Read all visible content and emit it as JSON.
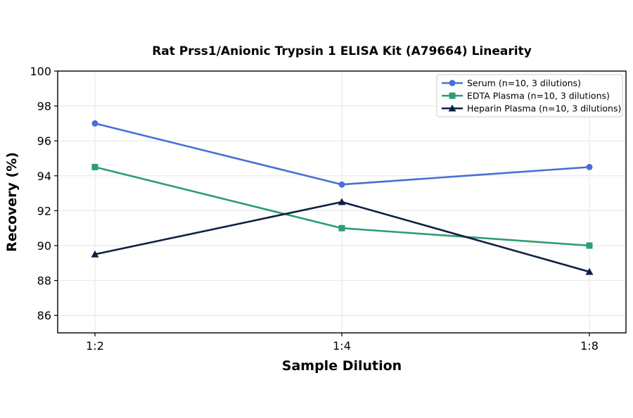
{
  "chart_data": {
    "type": "line",
    "title": "Rat Prss1/Anionic Trypsin 1 ELISA Kit (A79664) Linearity",
    "xlabel": "Sample Dilution",
    "ylabel": "Recovery (%)",
    "categories": [
      "1:2",
      "1:4",
      "1:8"
    ],
    "ylim": [
      85,
      100
    ],
    "yticks": [
      86,
      88,
      90,
      92,
      94,
      96,
      98,
      100
    ],
    "grid": true,
    "legend_position": "top-right",
    "series": [
      {
        "name": "Serum (n=10, 3 dilutions)",
        "values": [
          97.0,
          93.5,
          94.5
        ],
        "color": "#4a6fd4",
        "marker": "circle"
      },
      {
        "name": "EDTA Plasma (n=10, 3 dilutions)",
        "values": [
          94.5,
          91.0,
          90.0
        ],
        "color": "#2a9d74",
        "marker": "square"
      },
      {
        "name": "Heparin Plasma (n=10, 3 dilutions)",
        "values": [
          89.5,
          92.5,
          88.5
        ],
        "color": "#0f1f45",
        "marker": "triangle"
      }
    ]
  }
}
